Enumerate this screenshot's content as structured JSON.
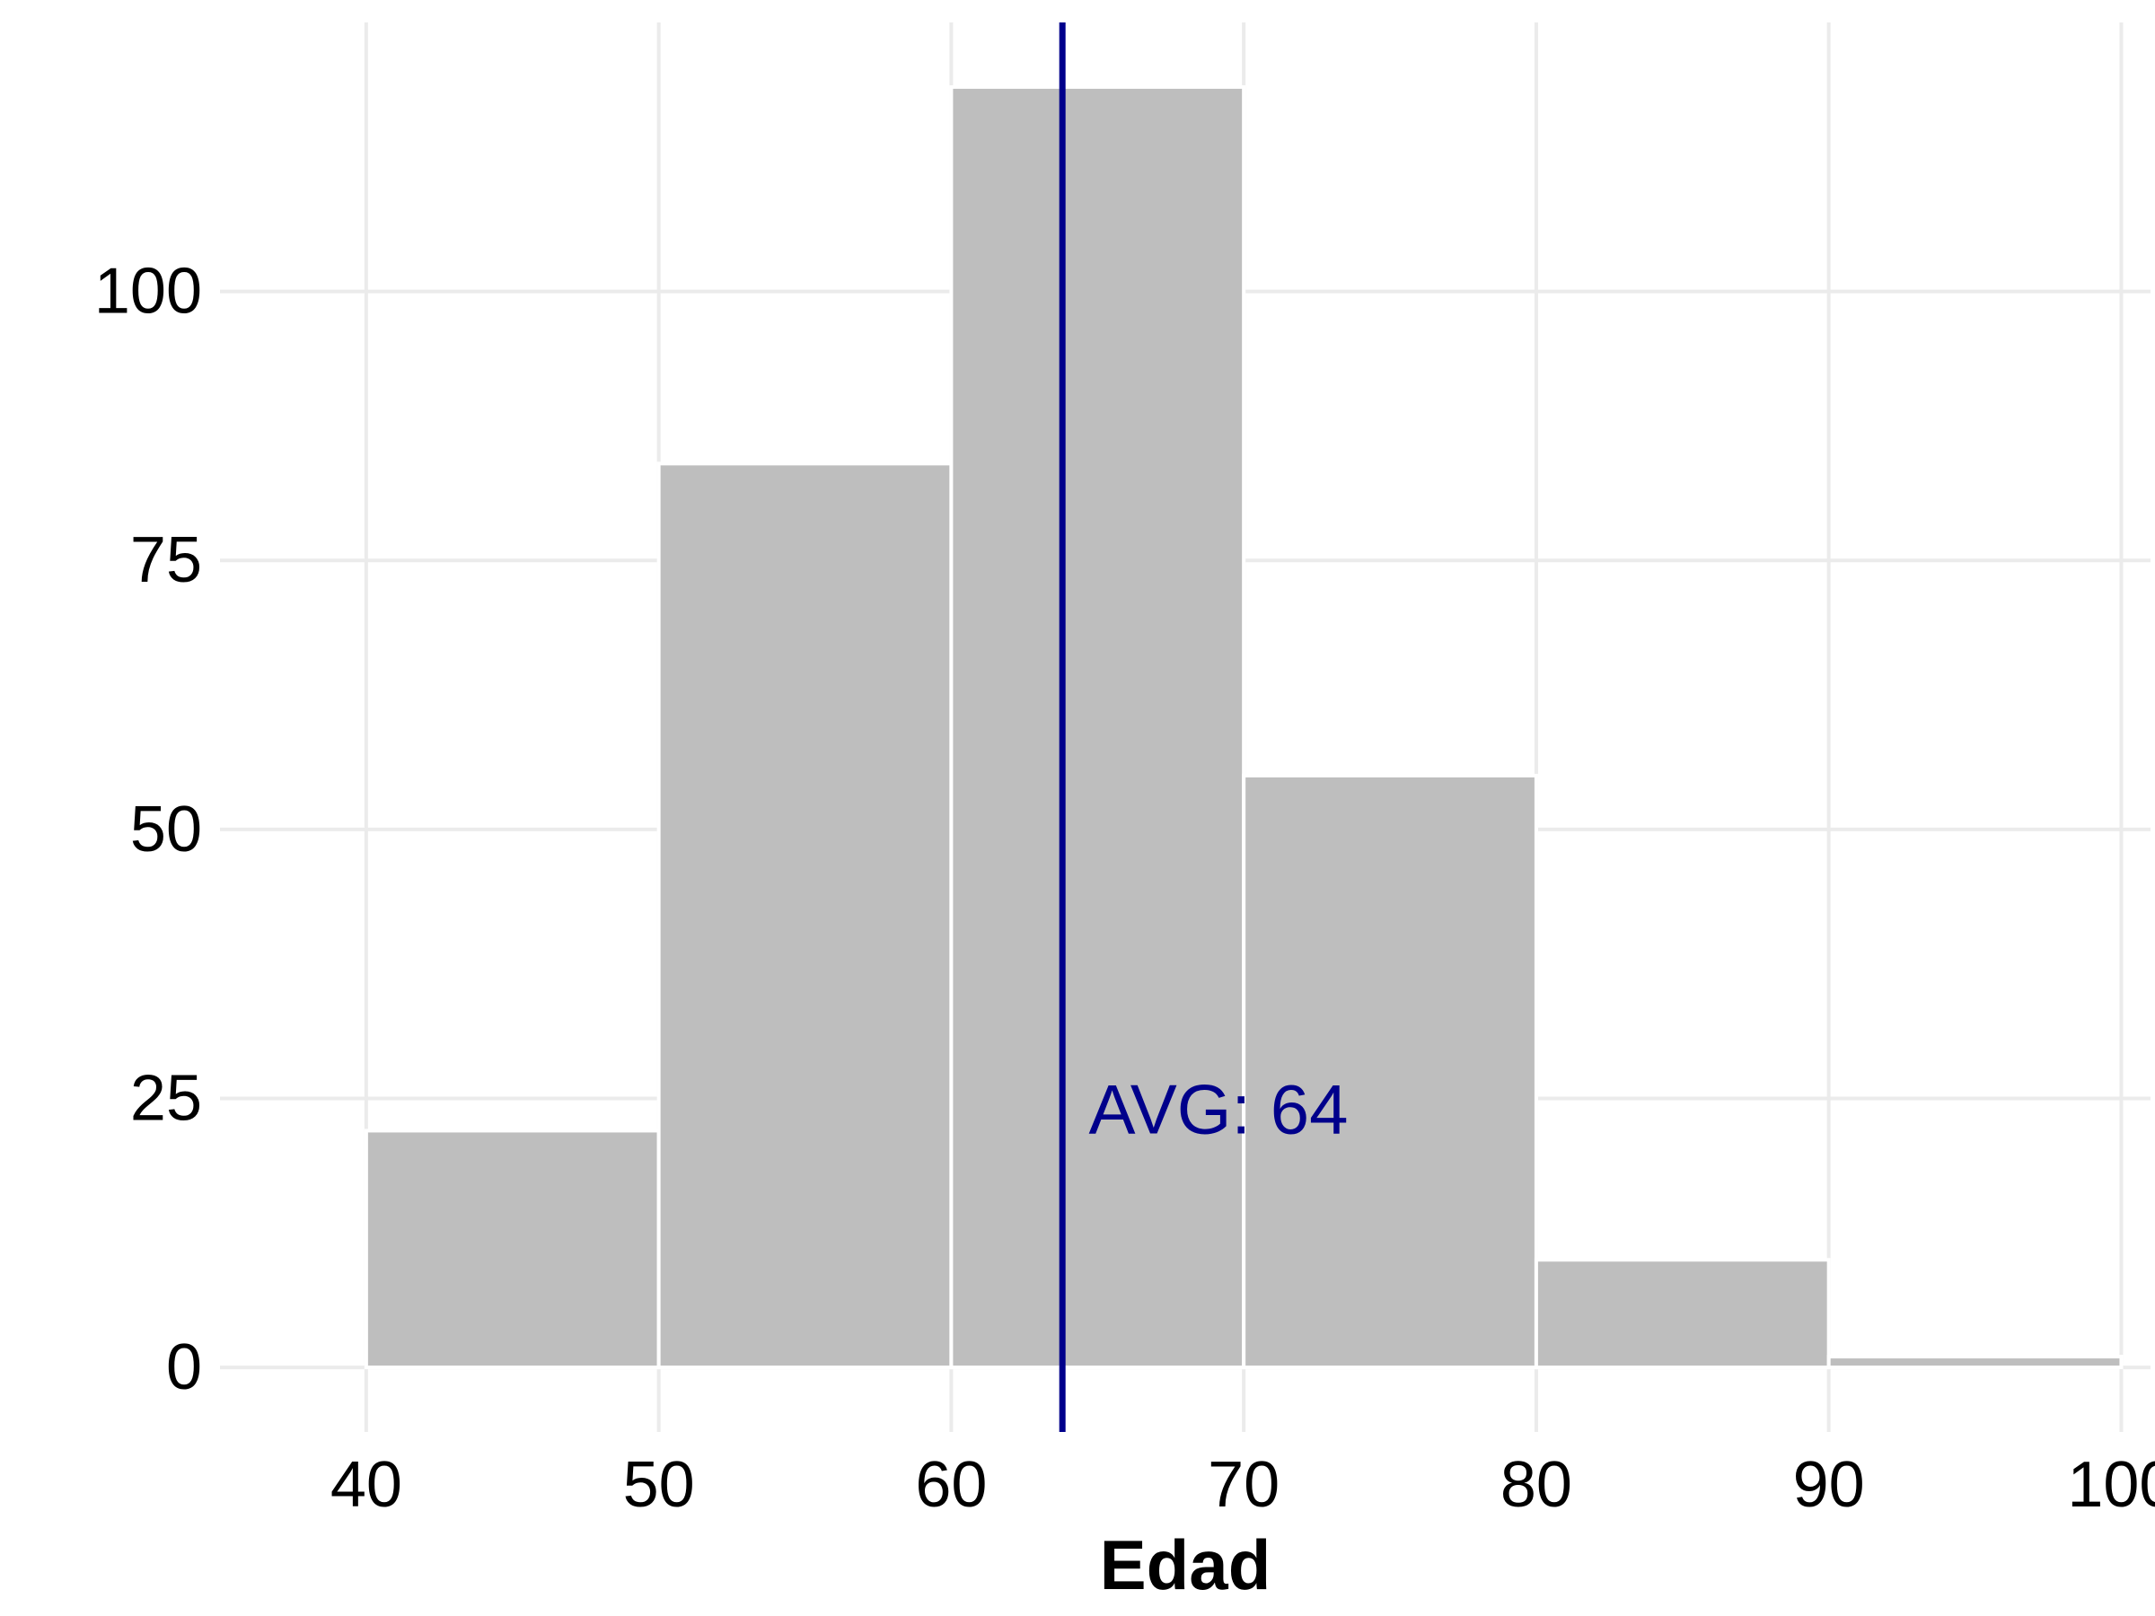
{
  "chart_data": {
    "type": "bar",
    "subtype": "histogram",
    "bins": [
      {
        "start": 40,
        "end": 50,
        "count": 22
      },
      {
        "start": 50,
        "end": 60,
        "count": 84
      },
      {
        "start": 60,
        "end": 70,
        "count": 119
      },
      {
        "start": 70,
        "end": 80,
        "count": 55
      },
      {
        "start": 80,
        "end": 90,
        "count": 10
      },
      {
        "start": 90,
        "end": 100,
        "count": 1
      }
    ],
    "xlabel": "Edad",
    "ylabel": "",
    "xlim": [
      35,
      101
    ],
    "ylim": [
      -6,
      125
    ],
    "xticks": [
      40,
      50,
      60,
      70,
      80,
      90,
      100
    ],
    "yticks": [
      0,
      25,
      50,
      75,
      100
    ],
    "xtick_labels": [
      "40",
      "50",
      "60",
      "70",
      "80",
      "90",
      "100"
    ],
    "ytick_labels": [
      "0",
      "25",
      "50",
      "75",
      "100"
    ],
    "grid": true,
    "bar_color": "#bebebe",
    "grid_color": "#ebebeb",
    "mean_line": {
      "x": 63.8,
      "color": "#00008b"
    },
    "annotation": {
      "text": "AVG: 64",
      "x": 64.7,
      "y": 24,
      "color": "#00008b"
    }
  }
}
